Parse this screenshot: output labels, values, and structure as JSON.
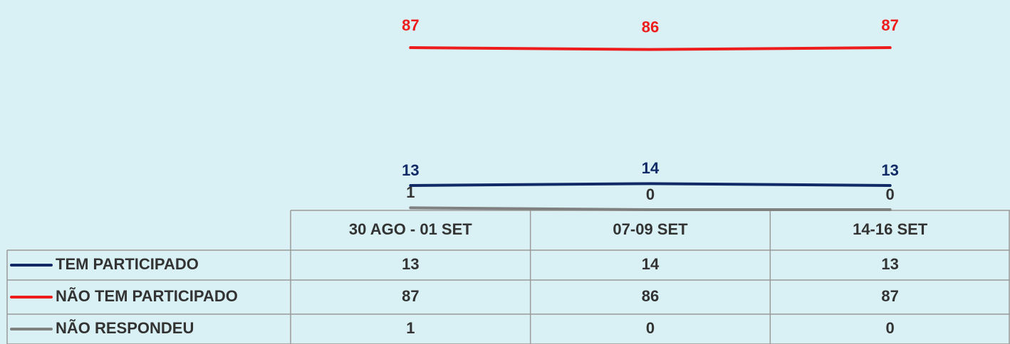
{
  "chart_data": {
    "type": "line",
    "categories": [
      "30 AGO - 01 SET",
      "07-09 SET",
      "14-16 SET"
    ],
    "series": [
      {
        "name": "TEM PARTICIPADO",
        "color": "#0f2a66",
        "values": [
          13,
          14,
          13
        ]
      },
      {
        "name": "NÃO TEM PARTICIPADO",
        "color": "#ee1c1c",
        "values": [
          87,
          86,
          87
        ]
      },
      {
        "name": "NÃO RESPONDEU",
        "color": "#808080",
        "values": [
          1,
          0,
          0
        ]
      }
    ],
    "ylim": [
      0,
      100
    ]
  }
}
